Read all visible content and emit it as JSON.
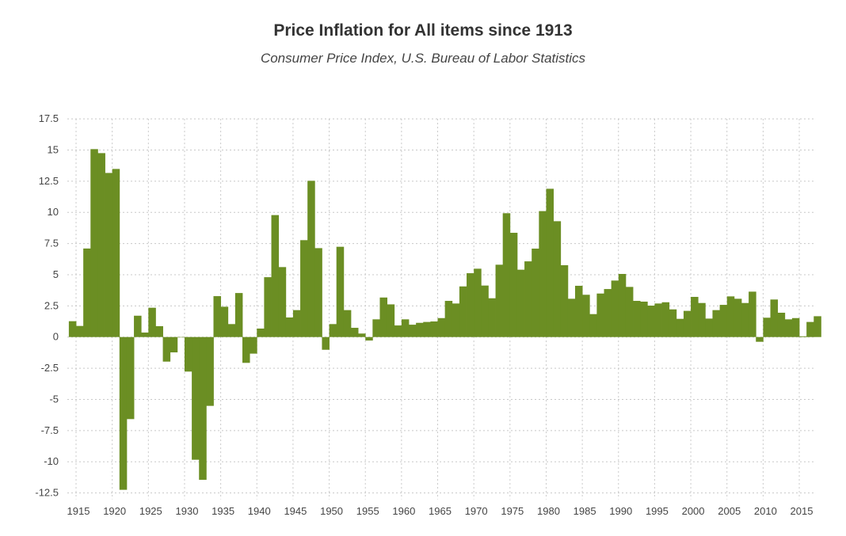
{
  "chart_data": {
    "type": "bar",
    "title": "Price Inflation for All items since 1913",
    "subtitle": "Consumer Price Index, U.S. Bureau of Labor Statistics",
    "xlabel": "",
    "ylabel": "",
    "bar_color": "#6b8e23",
    "grid": true,
    "ylim": [
      -12.5,
      17.5
    ],
    "yticks": [
      "17.5",
      "15",
      "12.5",
      "10",
      "7.5",
      "5",
      "2.5",
      "0",
      "-2.5",
      "-5",
      "-7.5",
      "-10",
      "-12.5"
    ],
    "xticks": [
      "1915",
      "1920",
      "1925",
      "1930",
      "1935",
      "1940",
      "1945",
      "1950",
      "1955",
      "1960",
      "1965",
      "1970",
      "1975",
      "1980",
      "1985",
      "1990",
      "1995",
      "2000",
      "2005",
      "2010",
      "2015"
    ],
    "x_start": 1914,
    "values": [
      1.27,
      0.89,
      7.1,
      15.07,
      14.75,
      13.16,
      13.48,
      -12.25,
      -6.58,
      1.71,
      0.36,
      2.35,
      0.87,
      -1.97,
      -1.23,
      0.0,
      -2.77,
      -9.84,
      -11.45,
      -5.52,
      3.28,
      2.43,
      1.04,
      3.53,
      -2.07,
      -1.33,
      0.68,
      4.8,
      9.78,
      5.61,
      1.57,
      2.16,
      7.77,
      12.53,
      7.13,
      -1.02,
      1.04,
      7.24,
      2.16,
      0.74,
      0.28,
      -0.28,
      1.42,
      3.17,
      2.62,
      0.93,
      1.42,
      0.99,
      1.14,
      1.21,
      1.25,
      1.52,
      2.9,
      2.69,
      4.06,
      5.12,
      5.48,
      4.13,
      3.11,
      5.8,
      9.93,
      8.36,
      5.4,
      6.07,
      7.09,
      10.1,
      11.89,
      9.29,
      5.76,
      3.07,
      4.11,
      3.39,
      1.84,
      3.49,
      3.85,
      4.53,
      5.06,
      4.02,
      2.9,
      2.84,
      2.52,
      2.69,
      2.79,
      2.22,
      1.46,
      2.1,
      3.22,
      2.73,
      1.48,
      2.16,
      2.58,
      3.26,
      3.07,
      2.73,
      3.64,
      -0.38,
      1.55,
      3.01,
      1.95,
      1.42,
      1.52,
      0.06,
      1.21,
      1.67
    ]
  }
}
